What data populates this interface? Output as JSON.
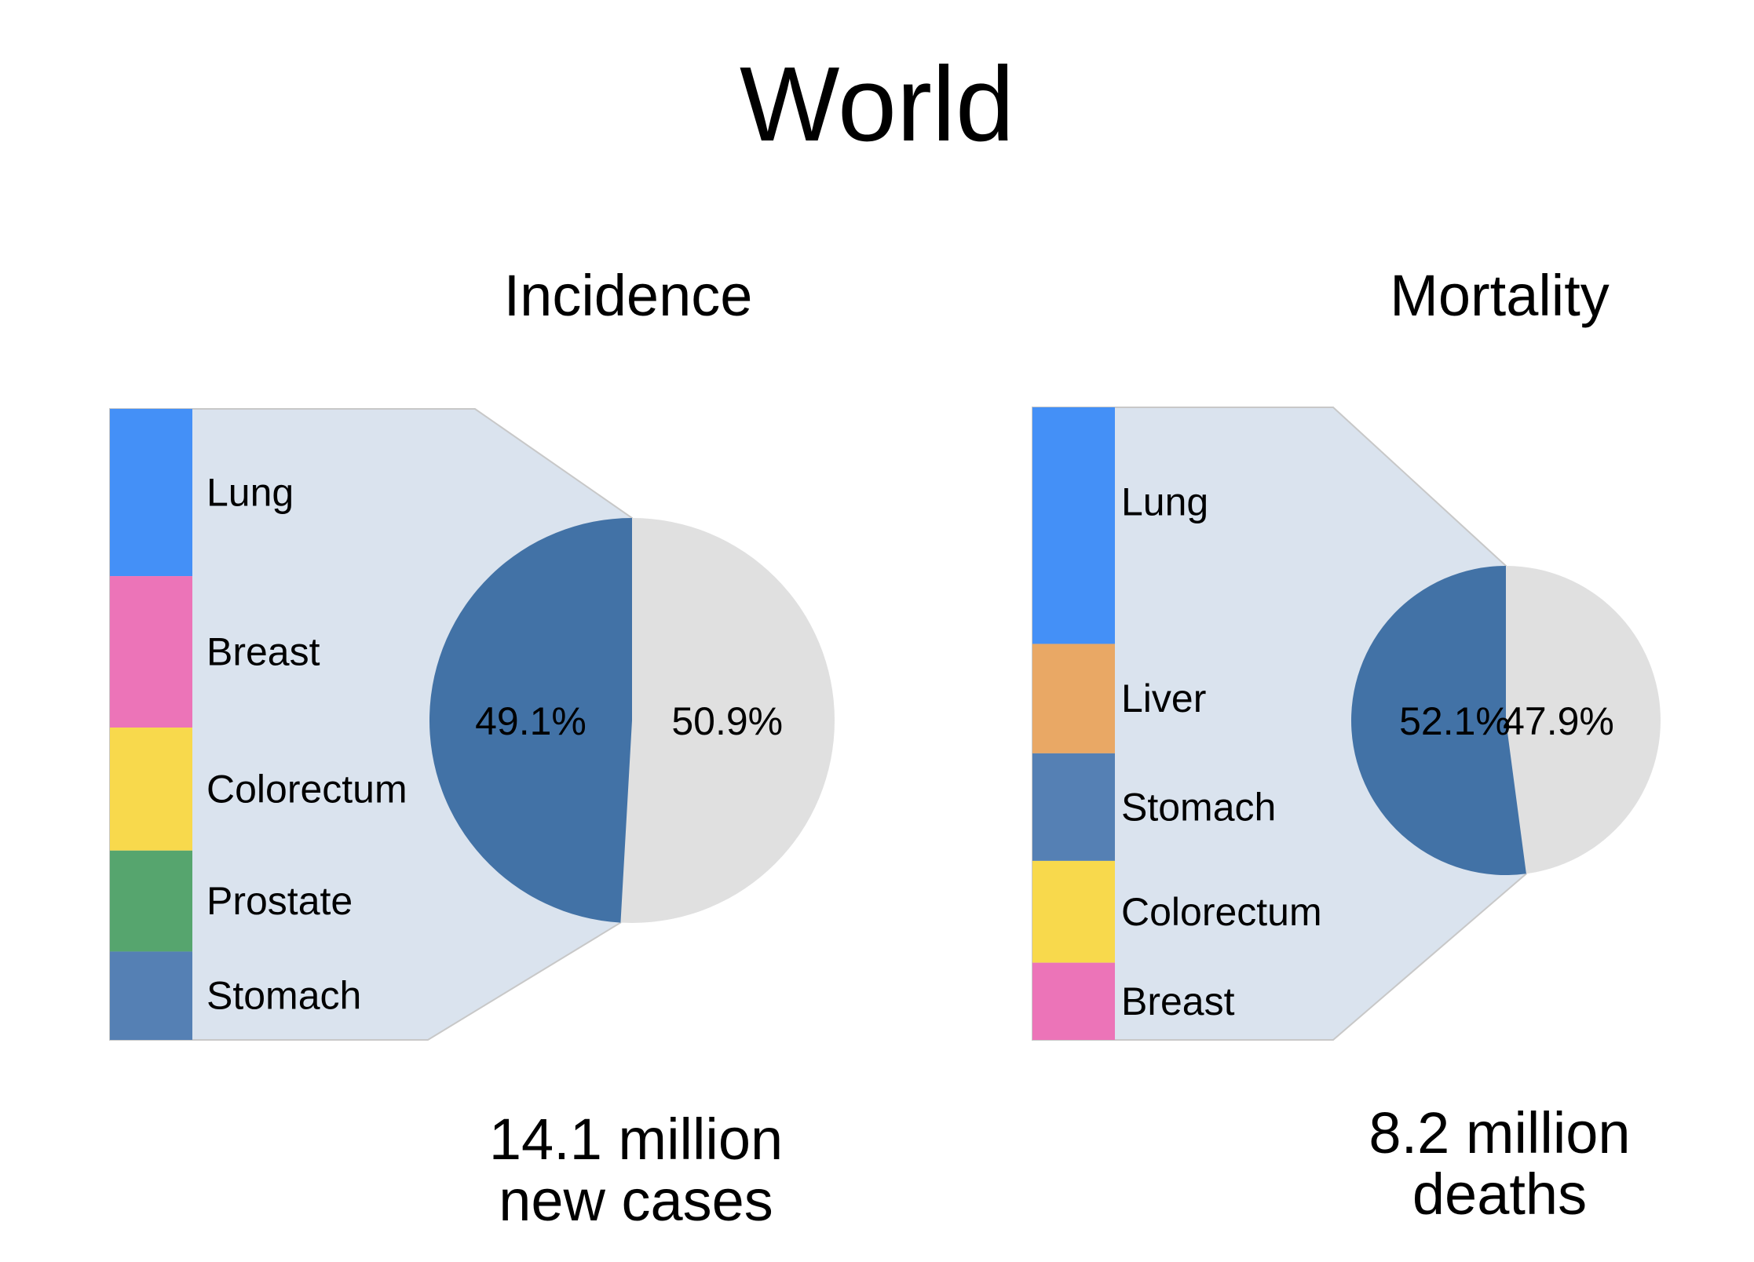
{
  "title": "World",
  "chart_data": [
    {
      "type": "pie",
      "title": "Incidence",
      "total_label_lines": [
        "14.1 million",
        "new cases"
      ],
      "slices": [
        {
          "label": "49.1%",
          "value": 49.1,
          "color": "#4272a6"
        },
        {
          "label": "50.9%",
          "value": 50.9,
          "color": "#e0e0e0"
        }
      ],
      "breakdown": [
        {
          "name": "Lung",
          "share": 0.265,
          "color": "#4490f7"
        },
        {
          "name": "Breast",
          "share": 0.24,
          "color": "#ec74b8"
        },
        {
          "name": "Colorectum",
          "share": 0.195,
          "color": "#f8d94c"
        },
        {
          "name": "Prostate",
          "share": 0.16,
          "color": "#56a56e"
        },
        {
          "name": "Stomach",
          "share": 0.14,
          "color": "#5580b4"
        }
      ]
    },
    {
      "type": "pie",
      "title": "Mortality",
      "total_label_lines": [
        "8.2 million",
        "deaths"
      ],
      "slices": [
        {
          "label": "52.1%",
          "value": 52.1,
          "color": "#4272a6"
        },
        {
          "label": "47.9%",
          "value": 47.9,
          "color": "#e0e0e0"
        }
      ],
      "breakdown": [
        {
          "name": "Lung",
          "share": 0.374,
          "color": "#4490f7"
        },
        {
          "name": "Liver",
          "share": 0.173,
          "color": "#e9a865"
        },
        {
          "name": "Stomach",
          "share": 0.17,
          "color": "#5580b4"
        },
        {
          "name": "Colorectum",
          "share": 0.161,
          "color": "#f8d94c"
        },
        {
          "name": "Breast",
          "share": 0.122,
          "color": "#ec74b8"
        }
      ]
    }
  ]
}
